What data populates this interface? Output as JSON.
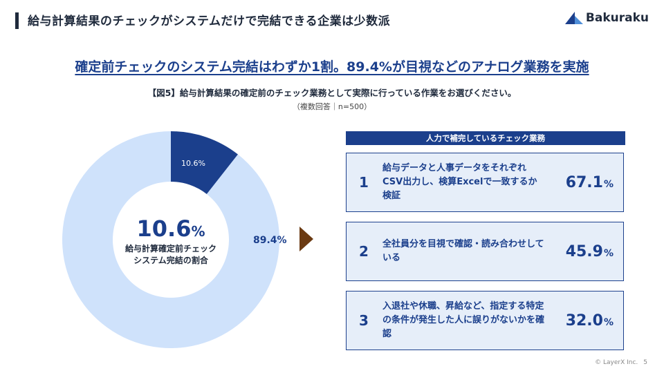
{
  "header": {
    "title": "給与計算結果のチェックがシステムだけで完結できる企業は少数派"
  },
  "logo": {
    "text": "Bakuraku",
    "color": "#1b3f8c"
  },
  "headline": "確定前チェックのシステム完結はわずか1割。89.4%が目視などのアナログ業務を実施",
  "question": "【図5】給与計算結果の確定前のチェック業務として実際に行っている作業をお選びください。",
  "note": "（複数回答｜n=500）",
  "chart_data": [
    {
      "type": "pie",
      "labels": [
        "10.6%",
        "89.4%"
      ],
      "values": [
        10.6,
        89.4
      ],
      "colors": [
        "#1b3f8c",
        "#cfe2fb"
      ],
      "center_value": "10.6",
      "center_unit": "%",
      "center_label_line1": "給与計算確定前チェック",
      "center_label_line2": "システム完結の割合"
    },
    {
      "type": "table",
      "title": "人力で補完しているチェック業務",
      "rows": [
        {
          "rank": "1",
          "text": "給与データと人事データをそれぞれCSV出力し、検算Excelで一致するか検証",
          "value": "67.1",
          "unit": "%"
        },
        {
          "rank": "2",
          "text": "全社員分を目視で確認・読み合わせしている",
          "value": "45.9",
          "unit": "%"
        },
        {
          "rank": "3",
          "text": "入退社や休職、昇給など、指定する特定の条件が発生した人に誤りがないかを確認",
          "value": "32.0",
          "unit": "%"
        }
      ]
    }
  ],
  "footer": {
    "copyright": "© LayerX Inc.",
    "page": "5"
  }
}
